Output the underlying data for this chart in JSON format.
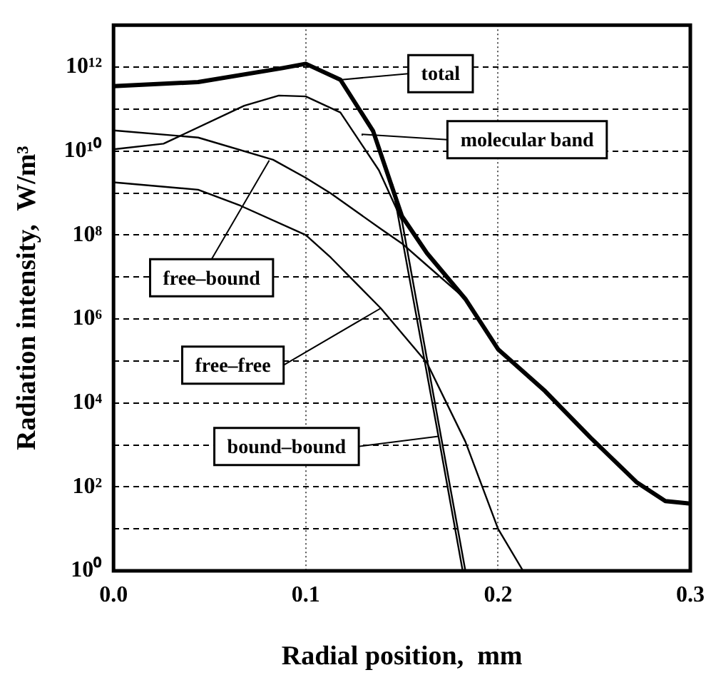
{
  "chart_data": {
    "type": "line",
    "xlabel": "Radial position,  mm",
    "ylabel": "Radiation intensity,  W/m³",
    "log": "y",
    "grid": true,
    "legend": false,
    "marker": "none",
    "line_style": "solid",
    "xlim": [
      0,
      0.3
    ],
    "xticks": [
      {
        "value": 0,
        "label": "0.0"
      },
      {
        "value": 0.1,
        "label": "0.1"
      },
      {
        "value": 0.2,
        "label": "0.2"
      },
      {
        "value": 0.3,
        "label": "0.3"
      }
    ],
    "ylim": [
      1,
      10000000000000.0
    ],
    "yticks": [
      {
        "value": 1,
        "label": "10⁰"
      },
      {
        "value": 10,
        "label": null
      },
      {
        "value": 100,
        "label": "10²"
      },
      {
        "value": 1000,
        "label": null
      },
      {
        "value": 10000,
        "label": "10⁴"
      },
      {
        "value": 100000,
        "label": null
      },
      {
        "value": 1000000,
        "label": "10⁶"
      },
      {
        "value": 10000000,
        "label": null
      },
      {
        "value": 100000000,
        "label": "10⁸"
      },
      {
        "value": 1000000000,
        "label": null
      },
      {
        "value": 10000000000,
        "label": "10¹⁰"
      },
      {
        "value": 100000000000,
        "label": null
      },
      {
        "value": 1000000000000,
        "label": "10¹²"
      },
      {
        "value": 10000000000000,
        "label": null
      }
    ],
    "series": [
      {
        "color": "#000000",
        "x": [
          0,
          0.044,
          0.088,
          0.1,
          0.118,
          0.135,
          0.15,
          0.163,
          0.183,
          0.2,
          0.224,
          0.248,
          0.272,
          0.287,
          0.3
        ],
        "values": [
          350000000000.0,
          440000000000.0,
          950000000000.0,
          1200000000000.0,
          500000000000.0,
          30000000000.0,
          280000000.0,
          37000000.0,
          3000000.0,
          190000.0,
          20000.0,
          1500.0,
          130,
          46,
          40
        ]
      },
      {
        "color": "#000000",
        "x": [
          0,
          0.026,
          0.068,
          0.086,
          0.1,
          0.118,
          0.138,
          0.15,
          0.165,
          0.183
        ],
        "values": [
          11000000000.0,
          15000000000.0,
          120000000000.0,
          210000000000.0,
          200000000000.0,
          83000000000.0,
          3500000000.0,
          220000000.0,
          35000.0,
          1
        ]
      },
      {
        "color": "#000000",
        "x": [
          0,
          0.044,
          0.083,
          0.1,
          0.113,
          0.139,
          0.15,
          0.16,
          0.183
        ],
        "values": [
          31000000000.0,
          21000000000.0,
          6200000000.0,
          2300000000.0,
          980000000.0,
          140000000.0,
          63000000.0,
          25000000.0,
          3000000.0
        ]
      },
      {
        "color": "#000000",
        "x": [
          0,
          0.044,
          0.066,
          0.1,
          0.113,
          0.139,
          0.163,
          0.183,
          0.2,
          0.213
        ],
        "values": [
          1800000000.0,
          1200000000.0,
          500000000.0,
          100000000.0,
          29000000.0,
          1800000.0,
          90000.0,
          1200.0,
          10,
          1
        ]
      },
      {
        "color": "#000000",
        "x": [
          0.145,
          0.155,
          0.169,
          0.1816
        ],
        "values": [
          1600000000.0,
          5000000.0,
          1600.0,
          1
        ]
      }
    ],
    "annotations": [
      "total",
      "molecular band",
      {
        "text": "free–bound",
        "x": 0.081,
        "y": 6000000000.0
      },
      {
        "text": "free–free",
        "x": 0.139,
        "y": 1800000.0
      },
      {
        "text": "bound–bound",
        "x": 0.169,
        "y": 1600.0
      }
    ]
  }
}
